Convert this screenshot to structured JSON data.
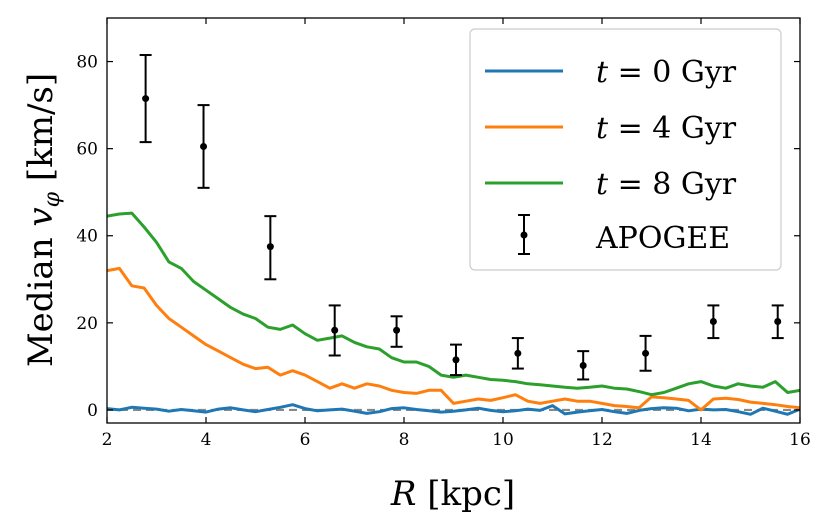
{
  "chart_data": {
    "type": "line",
    "title": "",
    "xlabel": "R [kpc]",
    "ylabel": "Median v_φ [km/s]",
    "xlim": [
      2,
      16
    ],
    "ylim": [
      -3,
      90
    ],
    "xticks": [
      2,
      4,
      6,
      8,
      10,
      12,
      14,
      16
    ],
    "yticks": [
      0,
      20,
      40,
      60,
      80
    ],
    "xtick_labels": [
      "2",
      "4",
      "6",
      "8",
      "10",
      "12",
      "14",
      "16"
    ],
    "ytick_labels": [
      "0",
      "20",
      "40",
      "60",
      "80"
    ],
    "reference_line": {
      "y": 0,
      "style": "dashed",
      "color": "#888888"
    },
    "legend_position": "upper-right",
    "series": [
      {
        "name": "t = 0 Gyr",
        "color": "#1f77b4",
        "x": [
          2.0,
          2.25,
          2.5,
          2.75,
          3.0,
          3.25,
          3.5,
          3.75,
          4.0,
          4.25,
          4.5,
          4.75,
          5.0,
          5.25,
          5.5,
          5.75,
          6.0,
          6.25,
          6.5,
          6.75,
          7.0,
          7.25,
          7.5,
          7.75,
          8.0,
          8.25,
          8.5,
          8.75,
          9.0,
          9.25,
          9.5,
          9.75,
          10.0,
          10.25,
          10.5,
          10.75,
          11.0,
          11.25,
          11.5,
          11.75,
          12.0,
          12.25,
          12.5,
          12.75,
          13.0,
          13.25,
          13.5,
          13.75,
          14.0,
          14.25,
          14.5,
          14.75,
          15.0,
          15.25,
          15.5,
          15.75,
          16.0
        ],
        "y": [
          0.3,
          0.0,
          0.6,
          0.4,
          0.2,
          -0.3,
          0.1,
          -0.2,
          -0.5,
          0.2,
          0.5,
          0.0,
          -0.4,
          0.1,
          0.6,
          1.2,
          0.3,
          -0.2,
          0.0,
          0.2,
          -0.3,
          -0.8,
          -0.4,
          0.3,
          0.5,
          0.1,
          -0.2,
          -0.5,
          -0.3,
          0.0,
          0.4,
          -0.1,
          -0.4,
          -0.2,
          0.2,
          -0.1,
          1.0,
          -0.9,
          -0.5,
          -0.2,
          0.1,
          -0.4,
          -0.8,
          -0.1,
          0.3,
          0.5,
          0.4,
          -0.2,
          0.2,
          0.0,
          0.1,
          -0.4,
          -1.0,
          0.4,
          -0.3,
          -1.0,
          0.2
        ]
      },
      {
        "name": "t = 4 Gyr",
        "color": "#ff7f0e",
        "x": [
          2.0,
          2.25,
          2.5,
          2.75,
          3.0,
          3.25,
          3.5,
          3.75,
          4.0,
          4.25,
          4.5,
          4.75,
          5.0,
          5.25,
          5.5,
          5.75,
          6.0,
          6.25,
          6.5,
          6.75,
          7.0,
          7.25,
          7.5,
          7.75,
          8.0,
          8.25,
          8.5,
          8.75,
          9.0,
          9.25,
          9.5,
          9.75,
          10.0,
          10.25,
          10.5,
          10.75,
          11.0,
          11.25,
          11.5,
          11.75,
          12.0,
          12.25,
          12.5,
          12.75,
          13.0,
          13.25,
          13.5,
          13.75,
          14.0,
          14.25,
          14.5,
          14.75,
          15.0,
          15.25,
          15.5,
          15.75,
          16.0
        ],
        "y": [
          32.0,
          32.5,
          28.5,
          28.0,
          24.0,
          21.0,
          19.0,
          17.0,
          15.0,
          13.5,
          12.0,
          10.5,
          9.5,
          9.8,
          8.0,
          9.0,
          8.0,
          6.5,
          5.0,
          6.0,
          5.0,
          6.0,
          5.5,
          4.5,
          4.0,
          3.8,
          4.5,
          4.5,
          1.5,
          2.0,
          2.5,
          2.2,
          2.8,
          3.5,
          2.0,
          1.5,
          2.0,
          2.5,
          2.0,
          2.0,
          1.5,
          1.0,
          0.8,
          0.5,
          3.0,
          2.8,
          2.5,
          2.2,
          0.0,
          2.5,
          2.7,
          2.4,
          1.8,
          1.5,
          1.2,
          0.8,
          0.5
        ]
      },
      {
        "name": "t = 8 Gyr",
        "color": "#2ca02c",
        "x": [
          2.0,
          2.25,
          2.5,
          2.75,
          3.0,
          3.25,
          3.5,
          3.75,
          4.0,
          4.25,
          4.5,
          4.75,
          5.0,
          5.25,
          5.5,
          5.75,
          6.0,
          6.25,
          6.5,
          6.75,
          7.0,
          7.25,
          7.5,
          7.75,
          8.0,
          8.25,
          8.5,
          8.75,
          9.0,
          9.25,
          9.5,
          9.75,
          10.0,
          10.25,
          10.5,
          10.75,
          11.0,
          11.25,
          11.5,
          11.75,
          12.0,
          12.25,
          12.5,
          12.75,
          13.0,
          13.25,
          13.5,
          13.75,
          14.0,
          14.25,
          14.5,
          14.75,
          15.0,
          15.25,
          15.5,
          15.75,
          16.0
        ],
        "y": [
          44.5,
          45.0,
          45.2,
          42.0,
          38.5,
          34.0,
          32.5,
          29.5,
          27.5,
          25.5,
          23.5,
          22.0,
          21.0,
          19.0,
          18.5,
          19.5,
          17.5,
          16.0,
          16.5,
          17.0,
          15.5,
          14.5,
          14.0,
          12.0,
          11.0,
          11.0,
          10.0,
          8.0,
          7.5,
          8.0,
          7.5,
          7.0,
          6.8,
          6.5,
          6.0,
          5.8,
          5.5,
          5.2,
          5.0,
          5.2,
          5.5,
          5.0,
          4.8,
          4.2,
          3.5,
          4.0,
          5.0,
          6.0,
          6.5,
          5.5,
          5.0,
          6.0,
          5.5,
          5.2,
          6.5,
          4.0,
          4.5
        ]
      }
    ],
    "apogee": {
      "name": "APOGEE",
      "color": "#000000",
      "points": [
        {
          "x": 2.78,
          "y": 71.5,
          "lo": 61.5,
          "hi": 81.5
        },
        {
          "x": 3.95,
          "y": 60.5,
          "lo": 51.0,
          "hi": 70.0
        },
        {
          "x": 5.3,
          "y": 37.5,
          "lo": 30.0,
          "hi": 44.5
        },
        {
          "x": 6.6,
          "y": 18.3,
          "lo": 12.5,
          "hi": 24.0
        },
        {
          "x": 7.85,
          "y": 18.3,
          "lo": 14.5,
          "hi": 21.5
        },
        {
          "x": 9.05,
          "y": 11.5,
          "lo": 8.0,
          "hi": 15.0
        },
        {
          "x": 10.3,
          "y": 13.0,
          "lo": 9.5,
          "hi": 16.5
        },
        {
          "x": 11.62,
          "y": 10.2,
          "lo": 7.0,
          "hi": 13.5
        },
        {
          "x": 12.88,
          "y": 13.0,
          "lo": 9.0,
          "hi": 17.0
        },
        {
          "x": 14.25,
          "y": 20.3,
          "lo": 16.5,
          "hi": 24.0
        },
        {
          "x": 15.55,
          "y": 20.3,
          "lo": 16.5,
          "hi": 24.0
        }
      ]
    },
    "legend": [
      {
        "var": "t",
        "eq": " = 0 Gyr"
      },
      {
        "var": "t",
        "eq": " = 4 Gyr"
      },
      {
        "var": "t",
        "eq": " = 8 Gyr"
      },
      {
        "var": "",
        "eq": "APOGEE"
      }
    ],
    "axis_text": {
      "x_var": "R",
      "x_unit": " [kpc]",
      "y_prefix": "Median ",
      "y_var": "v",
      "y_sub": "φ",
      "y_unit": " [km/s]"
    }
  }
}
